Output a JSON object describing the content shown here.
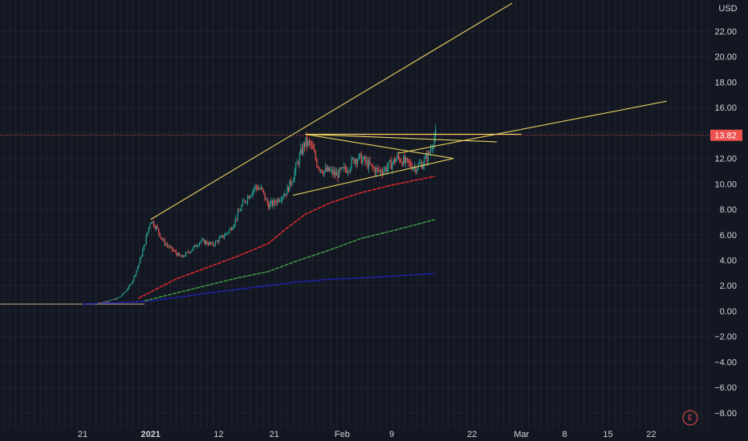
{
  "colors": {
    "background": "#131722",
    "grid": "#2a2e39",
    "up": "#26a69a",
    "down": "#ef5350",
    "trendline": "#e8d35f",
    "ma_red": "#ef2b2b",
    "ma_green": "#43a047",
    "ma_blue": "#2323c9",
    "price_tag": "#ef5350",
    "axis_text": "#d1d4dc"
  },
  "header": {
    "currency": "USD"
  },
  "price_tag": {
    "value": "13.82"
  },
  "earnings_marker": {
    "label": "E"
  },
  "chart_data": {
    "type": "candlestick",
    "y_ticks": [
      "22.00",
      "20.00",
      "18.00",
      "16.00",
      "14.00",
      "12.00",
      "10.00",
      "8.00",
      "6.00",
      "4.00",
      "2.00",
      "0.00",
      "−2.00",
      "−4.00",
      "−6.00",
      "−8.00"
    ],
    "y_tick_values": [
      22,
      20,
      18,
      16,
      14,
      12,
      10,
      8,
      6,
      4,
      2,
      0,
      -2,
      -4,
      -6,
      -8
    ],
    "ylim": [
      -8.7,
      24.2
    ],
    "x_ticks": [
      {
        "label": "21",
        "day": 0,
        "bold": false
      },
      {
        "label": "2021",
        "day": 11,
        "bold": true
      },
      {
        "label": "12",
        "day": 22,
        "bold": false
      },
      {
        "label": "21",
        "day": 31,
        "bold": false
      },
      {
        "label": "Feb",
        "day": 42,
        "bold": false
      },
      {
        "label": "9",
        "day": 50,
        "bold": false
      },
      {
        "label": "22",
        "day": 63,
        "bold": false
      },
      {
        "label": "Mar",
        "day": 71,
        "bold": false
      },
      {
        "label": "8",
        "day": 78,
        "bold": false
      },
      {
        "label": "15",
        "day": 85,
        "bold": false
      },
      {
        "label": "22",
        "day": 92,
        "bold": false
      }
    ],
    "last_price": 13.82,
    "price_path": [
      [
        0,
        0.6
      ],
      [
        3,
        0.65
      ],
      [
        4,
        0.8
      ],
      [
        5,
        0.9
      ],
      [
        6,
        1.1
      ],
      [
        7,
        1.6
      ],
      [
        8,
        2.3
      ],
      [
        9,
        3.6
      ],
      [
        10,
        5.2
      ],
      [
        11,
        7.2
      ],
      [
        12,
        6.5
      ],
      [
        13,
        5.5
      ],
      [
        14,
        5.0
      ],
      [
        15,
        4.6
      ],
      [
        16,
        4.2
      ],
      [
        17,
        4.6
      ],
      [
        18,
        5.0
      ],
      [
        19,
        5.5
      ],
      [
        20,
        5.4
      ],
      [
        21,
        5.2
      ],
      [
        22,
        5.6
      ],
      [
        23,
        6.0
      ],
      [
        24,
        6.5
      ],
      [
        25,
        7.5
      ],
      [
        26,
        8.5
      ],
      [
        27,
        9.2
      ],
      [
        28,
        9.8
      ],
      [
        29,
        9.5
      ],
      [
        30,
        8.3
      ],
      [
        31,
        8.5
      ],
      [
        32,
        9.0
      ],
      [
        33,
        9.4
      ],
      [
        34,
        10.5
      ],
      [
        35,
        12.0
      ],
      [
        36,
        13.3
      ],
      [
        37,
        13.0
      ],
      [
        38,
        11.5
      ],
      [
        39,
        11.0
      ],
      [
        40,
        11.0
      ],
      [
        41,
        10.7
      ],
      [
        42,
        11.0
      ],
      [
        43,
        11.3
      ],
      [
        44,
        12.0
      ],
      [
        45,
        12.0
      ],
      [
        46,
        11.6
      ],
      [
        47,
        11.2
      ],
      [
        48,
        11.0
      ],
      [
        49,
        11.2
      ],
      [
        50,
        11.6
      ],
      [
        51,
        12.1
      ],
      [
        52,
        11.7
      ],
      [
        53,
        11.5
      ],
      [
        54,
        11.3
      ],
      [
        55,
        11.6
      ],
      [
        56,
        12.3
      ],
      [
        57,
        13.9
      ],
      [
        57.3,
        13.82
      ]
    ],
    "ma_red": [
      [
        9,
        1.0
      ],
      [
        15,
        2.5
      ],
      [
        20,
        3.4
      ],
      [
        25,
        4.3
      ],
      [
        30,
        5.3
      ],
      [
        33,
        6.5
      ],
      [
        36,
        7.6
      ],
      [
        40,
        8.5
      ],
      [
        45,
        9.3
      ],
      [
        50,
        9.9
      ],
      [
        54,
        10.3
      ],
      [
        57,
        10.6
      ]
    ],
    "ma_green": [
      [
        10,
        0.8
      ],
      [
        15,
        1.4
      ],
      [
        20,
        2.0
      ],
      [
        25,
        2.6
      ],
      [
        30,
        3.1
      ],
      [
        35,
        4.0
      ],
      [
        40,
        4.8
      ],
      [
        45,
        5.7
      ],
      [
        50,
        6.3
      ],
      [
        54,
        6.8
      ],
      [
        57,
        7.2
      ]
    ],
    "ma_blue": [
      [
        0,
        0.55
      ],
      [
        10,
        0.75
      ],
      [
        15,
        1.05
      ],
      [
        20,
        1.4
      ],
      [
        25,
        1.7
      ],
      [
        30,
        2.0
      ],
      [
        35,
        2.3
      ],
      [
        40,
        2.5
      ],
      [
        45,
        2.6
      ],
      [
        50,
        2.75
      ],
      [
        57,
        2.95
      ]
    ],
    "trendlines": [
      {
        "from": [
          11,
          7.2
        ],
        "to": [
          69.5,
          24.2
        ]
      },
      {
        "from": [
          36,
          13.9
        ],
        "to": [
          71,
          13.9
        ]
      },
      {
        "from": [
          36,
          13.9
        ],
        "to": [
          67,
          13.3
        ]
      },
      {
        "from": [
          36,
          13.9
        ],
        "to": [
          60,
          12.0
        ]
      },
      {
        "from": [
          34,
          9.1
        ],
        "to": [
          60,
          12.0
        ]
      },
      {
        "from": [
          51,
          12.4
        ],
        "to": [
          94.5,
          16.5
        ]
      }
    ]
  }
}
